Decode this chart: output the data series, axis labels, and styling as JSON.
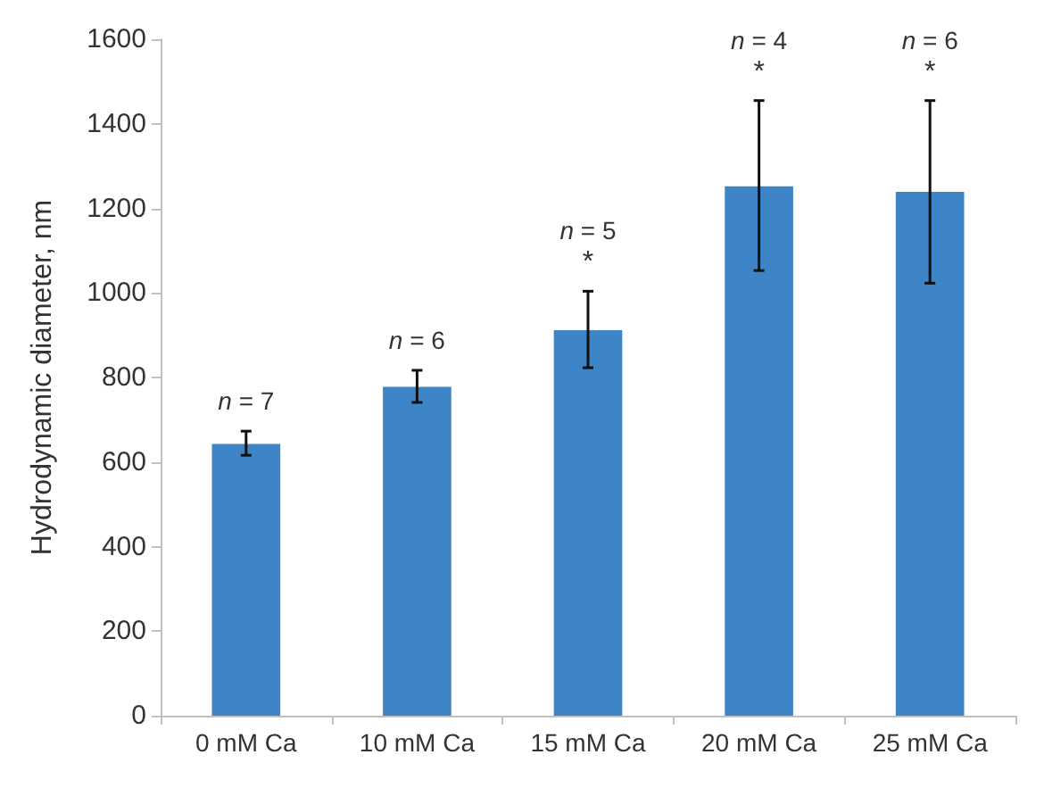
{
  "chart_data": {
    "type": "bar",
    "ylabel": "Hydrodynamic diameter, nm",
    "categories": [
      "0 mM Ca",
      "10 mM Ca",
      "15 mM Ca",
      "20 mM Ca",
      "25 mM Ca"
    ],
    "values": [
      643,
      778,
      912,
      1252,
      1239
    ],
    "errors": [
      [
        616,
        673
      ],
      [
        741,
        817
      ],
      [
        823,
        1004
      ],
      [
        1053,
        1455
      ],
      [
        1023,
        1455
      ]
    ],
    "color": "#3d85c6",
    "ylim": [
      0,
      1600
    ],
    "yticks": [
      0,
      200,
      400,
      600,
      800,
      1000,
      1200,
      1400,
      1600
    ],
    "grid": false,
    "annotations": [
      "n = 7",
      "n = 6",
      "n = 5\n*",
      "n = 4\n*",
      "n = 6\n*"
    ]
  }
}
